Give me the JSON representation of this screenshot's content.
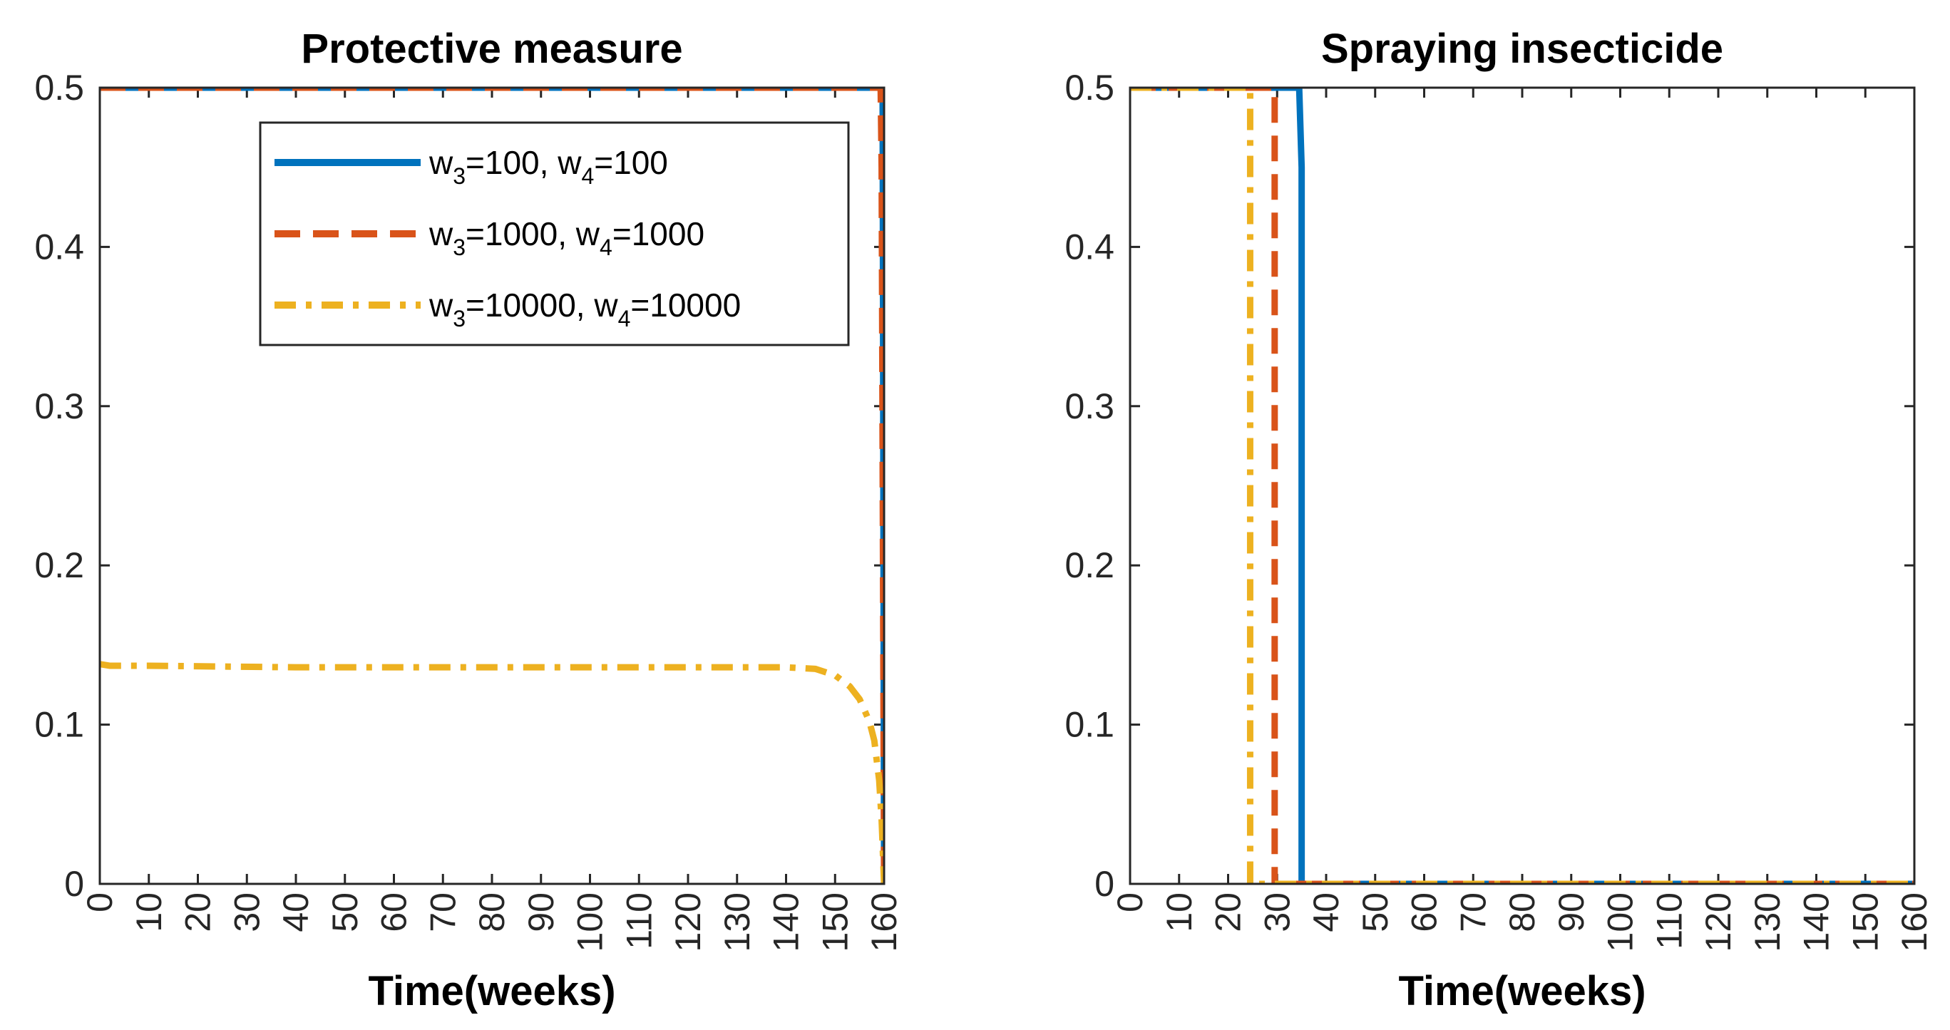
{
  "chart_data": [
    {
      "type": "line",
      "title": "Protective measure",
      "xlabel": "Time(weeks)",
      "ylabel": "",
      "xlim": [
        0,
        160
      ],
      "ylim": [
        0,
        0.5
      ],
      "xticks": [
        "0",
        "10",
        "20",
        "30",
        "40",
        "50",
        "60",
        "70",
        "80",
        "90",
        "100",
        "110",
        "120",
        "130",
        "140",
        "150",
        "160"
      ],
      "yticks": [
        "0",
        "0.1",
        "0.2",
        "0.3",
        "0.4",
        "0.5"
      ],
      "legend": {
        "placement": "top-right",
        "entries": [
          {
            "w3_label": "w",
            "w3_sub": "3",
            "w3_val": "=100, ",
            "w4_label": "w",
            "w4_sub": "4",
            "w4_val": "=100"
          },
          {
            "w3_label": "w",
            "w3_sub": "3",
            "w3_val": "=1000, ",
            "w4_label": "w",
            "w4_sub": "4",
            "w4_val": "=1000"
          },
          {
            "w3_label": "w",
            "w3_sub": "3",
            "w3_val": "=10000, ",
            "w4_label": "w",
            "w4_sub": "4",
            "w4_val": "=10000"
          }
        ]
      },
      "series": [
        {
          "name": "w3=100, w4=100",
          "color": "#0072BD",
          "style": "solid",
          "points": [
            [
              0,
              0.5
            ],
            [
              159.5,
              0.5
            ],
            [
              159.7,
              0.5
            ],
            [
              160,
              0
            ]
          ]
        },
        {
          "name": "w3=1000, w4=1000",
          "color": "#D95319",
          "style": "dashed",
          "points": [
            [
              0,
              0.5
            ],
            [
              159.3,
              0.5
            ],
            [
              159.5,
              0.45
            ],
            [
              160,
              0
            ]
          ]
        },
        {
          "name": "w3=10000, w4=10000",
          "color": "#EDB120",
          "style": "dashdot",
          "points": [
            [
              0,
              0.138
            ],
            [
              2,
              0.137
            ],
            [
              10,
              0.137
            ],
            [
              40,
              0.136
            ],
            [
              80,
              0.136
            ],
            [
              120,
              0.136
            ],
            [
              140,
              0.136
            ],
            [
              146,
              0.135
            ],
            [
              150,
              0.131
            ],
            [
              153,
              0.124
            ],
            [
              155,
              0.116
            ],
            [
              157,
              0.102
            ],
            [
              158,
              0.09
            ],
            [
              159,
              0.065
            ],
            [
              159.5,
              0.04
            ],
            [
              160,
              0
            ]
          ]
        }
      ]
    },
    {
      "type": "line",
      "title": "Spraying insecticide",
      "xlabel": "Time(weeks)",
      "ylabel": "",
      "xlim": [
        0,
        160
      ],
      "ylim": [
        0,
        0.5
      ],
      "xticks": [
        "0",
        "10",
        "20",
        "30",
        "40",
        "50",
        "60",
        "70",
        "80",
        "90",
        "100",
        "110",
        "120",
        "130",
        "140",
        "150",
        "160"
      ],
      "yticks": [
        "0",
        "0.1",
        "0.2",
        "0.3",
        "0.4",
        "0.5"
      ],
      "series": [
        {
          "name": "w3=100, w4=100",
          "color": "#0072BD",
          "style": "solid",
          "points": [
            [
              0,
              0.5
            ],
            [
              34.5,
              0.5
            ],
            [
              35,
              0.45
            ],
            [
              35,
              0
            ],
            [
              160,
              0
            ]
          ]
        },
        {
          "name": "w3=1000, w4=1000",
          "color": "#D95319",
          "style": "dashed",
          "points": [
            [
              0,
              0.5
            ],
            [
              29.5,
              0.5
            ],
            [
              29.5,
              0
            ],
            [
              160,
              0
            ]
          ]
        },
        {
          "name": "w3=10000, w4=10000",
          "color": "#EDB120",
          "style": "dashdot",
          "points": [
            [
              0,
              0.5
            ],
            [
              24.5,
              0.5
            ],
            [
              24.5,
              0
            ],
            [
              160,
              0
            ]
          ]
        }
      ]
    }
  ]
}
